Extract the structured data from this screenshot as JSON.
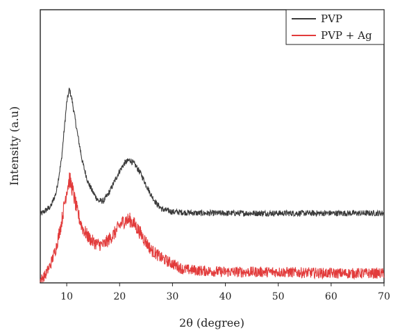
{
  "chart_data": {
    "type": "line",
    "xlabel": "2θ  (degree)",
    "ylabel": "Intensity  (a.u)",
    "xlim": [
      5,
      70
    ],
    "xticks": [
      10,
      20,
      30,
      40,
      50,
      60,
      70
    ],
    "yticks_shown": false,
    "legend_position": "top-right",
    "series": [
      {
        "name": "PVP",
        "color": "#3a3a3a",
        "x": [
          5,
          7,
          8,
          9,
          10,
          10.5,
          11,
          12,
          13,
          14,
          15,
          16,
          17,
          18,
          19,
          20,
          21,
          22,
          23,
          24,
          25,
          26,
          27,
          28,
          30,
          35,
          40,
          50,
          60,
          70
        ],
        "y": [
          0.25,
          0.28,
          0.33,
          0.45,
          0.66,
          0.71,
          0.67,
          0.55,
          0.44,
          0.37,
          0.33,
          0.3,
          0.3,
          0.33,
          0.37,
          0.41,
          0.44,
          0.45,
          0.43,
          0.4,
          0.36,
          0.32,
          0.29,
          0.27,
          0.26,
          0.255,
          0.255,
          0.255,
          0.255,
          0.255
        ]
      },
      {
        "name": "PVP + Ag",
        "color": "#e23b3b",
        "x": [
          5,
          6,
          7,
          8,
          9,
          10,
          10.5,
          11,
          12,
          13,
          14,
          15,
          16,
          17,
          18,
          19,
          20,
          21,
          22,
          23,
          24,
          25,
          26,
          28,
          30,
          32,
          35,
          40,
          50,
          60,
          70
        ],
        "y": [
          0.01,
          0.03,
          0.07,
          0.13,
          0.22,
          0.34,
          0.38,
          0.35,
          0.26,
          0.2,
          0.17,
          0.15,
          0.14,
          0.14,
          0.16,
          0.18,
          0.21,
          0.23,
          0.23,
          0.21,
          0.18,
          0.15,
          0.12,
          0.09,
          0.07,
          0.05,
          0.045,
          0.04,
          0.04,
          0.035,
          0.035
        ]
      }
    ]
  }
}
